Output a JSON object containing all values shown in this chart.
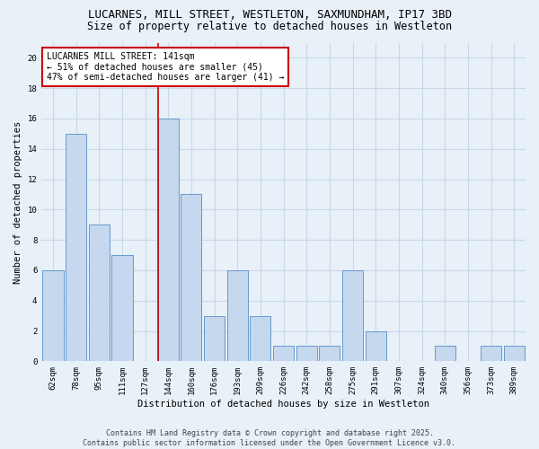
{
  "title": "LUCARNES, MILL STREET, WESTLETON, SAXMUNDHAM, IP17 3BD",
  "subtitle": "Size of property relative to detached houses in Westleton",
  "xlabel": "Distribution of detached houses by size in Westleton",
  "ylabel": "Number of detached properties",
  "categories": [
    "62sqm",
    "78sqm",
    "95sqm",
    "111sqm",
    "127sqm",
    "144sqm",
    "160sqm",
    "176sqm",
    "193sqm",
    "209sqm",
    "226sqm",
    "242sqm",
    "258sqm",
    "275sqm",
    "291sqm",
    "307sqm",
    "324sqm",
    "340sqm",
    "356sqm",
    "373sqm",
    "389sqm"
  ],
  "values": [
    6,
    15,
    9,
    7,
    0,
    16,
    11,
    3,
    6,
    3,
    1,
    1,
    1,
    6,
    2,
    0,
    0,
    1,
    0,
    1,
    1
  ],
  "bar_color": "#c5d8ee",
  "bar_edge_color": "#6699cc",
  "reference_line_index": 5,
  "reference_line_color": "#cc0000",
  "annotation_text": "LUCARNES MILL STREET: 141sqm\n← 51% of detached houses are smaller (45)\n47% of semi-detached houses are larger (41) →",
  "annotation_box_facecolor": "#ffffff",
  "annotation_box_edgecolor": "#cc0000",
  "ylim": [
    0,
    21
  ],
  "yticks": [
    0,
    2,
    4,
    6,
    8,
    10,
    12,
    14,
    16,
    18,
    20
  ],
  "grid_color": "#c8d8e8",
  "background_color": "#e8f0f8",
  "footer_text": "Contains HM Land Registry data © Crown copyright and database right 2025.\nContains public sector information licensed under the Open Government Licence v3.0.",
  "title_fontsize": 9,
  "subtitle_fontsize": 8.5,
  "axis_label_fontsize": 7.5,
  "tick_fontsize": 6.5,
  "annotation_fontsize": 7,
  "footer_fontsize": 6
}
